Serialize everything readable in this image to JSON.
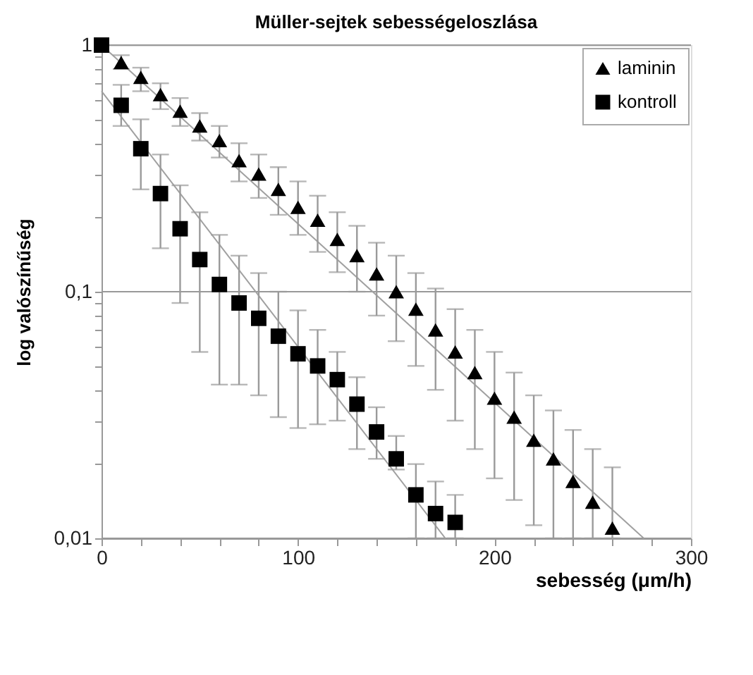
{
  "chart_data": {
    "type": "scatter",
    "title": "Müller-sejtek sebességeloszlása",
    "xlabel": "sebesség (μm/h)",
    "ylabel": "log valószínűség",
    "log": "y",
    "xlim": [
      0,
      300
    ],
    "xticks": [
      0,
      {
        "value": 20,
        "label": null
      },
      {
        "value": 40,
        "label": null
      },
      {
        "value": 60,
        "label": null
      },
      {
        "value": 80,
        "label": null
      },
      100,
      {
        "value": 120,
        "label": null
      },
      {
        "value": 140,
        "label": null
      },
      {
        "value": 160,
        "label": null
      },
      {
        "value": 180,
        "label": null
      },
      200,
      {
        "value": 220,
        "label": null
      },
      {
        "value": 240,
        "label": null
      },
      {
        "value": 260,
        "label": null
      },
      {
        "value": 280,
        "label": null
      },
      300
    ],
    "ylim": [
      0.01,
      1
    ],
    "yticks": [
      {
        "value": 0.01,
        "label": "0,01"
      },
      {
        "value": 0.02,
        "label": null
      },
      {
        "value": 0.03,
        "label": null
      },
      {
        "value": 0.04,
        "label": null
      },
      {
        "value": 0.05,
        "label": null
      },
      {
        "value": 0.06,
        "label": null
      },
      {
        "value": 0.07,
        "label": null
      },
      {
        "value": 0.08,
        "label": null
      },
      {
        "value": 0.09,
        "label": null
      },
      {
        "value": 0.1,
        "label": "0,1"
      },
      {
        "value": 0.2,
        "label": null
      },
      {
        "value": 0.3,
        "label": null
      },
      {
        "value": 0.4,
        "label": null
      },
      {
        "value": 0.5,
        "label": null
      },
      {
        "value": 0.6,
        "label": null
      },
      {
        "value": 0.7,
        "label": null
      },
      {
        "value": 0.8,
        "label": null
      },
      {
        "value": 0.9,
        "label": null
      },
      1
    ],
    "grid": "y",
    "legend": "top right",
    "series": [
      {
        "type": "line",
        "color": "#a0a0a0",
        "x": [
          0,
          276
        ],
        "values": [
          1.0,
          0.01
        ],
        "marker": "none",
        "line_style": "solid"
      },
      {
        "type": "line",
        "color": "#a0a0a0",
        "x": [
          0,
          175
        ],
        "values": [
          0.65,
          0.01
        ],
        "marker": "none",
        "line_style": "solid"
      },
      {
        "name": "laminin",
        "color": "#000000",
        "marker": "triangle",
        "x": [
          10,
          20,
          30,
          40,
          50,
          60,
          70,
          80,
          90,
          100,
          110,
          120,
          130,
          140,
          150,
          160,
          170,
          180,
          190,
          200,
          210,
          220,
          230,
          240,
          250,
          260
        ],
        "values": [
          0.85,
          0.74,
          0.63,
          0.54,
          0.47,
          0.41,
          0.34,
          0.3,
          0.26,
          0.22,
          0.195,
          0.163,
          0.14,
          0.118,
          0.1,
          0.085,
          0.07,
          0.057,
          0.047,
          0.037,
          0.031,
          0.025,
          0.021,
          0.017,
          0.014,
          0.011
        ],
        "errors": [
          [
            0.8,
            0.91
          ],
          [
            0.65,
            0.81
          ],
          [
            0.55,
            0.7
          ],
          [
            0.47,
            0.61
          ],
          [
            0.41,
            0.53
          ],
          [
            0.35,
            0.47
          ],
          [
            0.28,
            0.4
          ],
          [
            0.24,
            0.36
          ],
          [
            0.205,
            0.32
          ],
          [
            0.17,
            0.28
          ],
          [
            0.145,
            0.245
          ],
          [
            0.12,
            0.21
          ],
          [
            0.1,
            0.185
          ],
          [
            0.08,
            0.158
          ],
          [
            0.063,
            0.14
          ],
          [
            0.05,
            0.119
          ],
          [
            0.04,
            0.103
          ],
          [
            0.03,
            0.085
          ],
          [
            0.023,
            0.07
          ],
          [
            0.0175,
            0.057
          ],
          [
            0.0143,
            0.047
          ],
          [
            0.0113,
            0.038
          ],
          [
            0.01,
            0.033
          ],
          [
            0.01,
            0.0275
          ],
          [
            0.01,
            0.023
          ],
          [
            0.01,
            0.0194
          ]
        ]
      },
      {
        "name": "kontroll",
        "color": "#000000",
        "marker": "square",
        "x": [
          0,
          10,
          20,
          30,
          40,
          50,
          60,
          70,
          80,
          90,
          100,
          110,
          120,
          130,
          140,
          150,
          160,
          170,
          180
        ],
        "values": [
          1.0,
          0.57,
          0.38,
          0.25,
          0.18,
          0.135,
          0.107,
          0.09,
          0.078,
          0.066,
          0.056,
          0.05,
          0.044,
          0.035,
          0.027,
          0.021,
          0.015,
          0.0126,
          0.0116
        ],
        "errors": [
          null,
          [
            0.47,
            0.69
          ],
          [
            0.26,
            0.5
          ],
          [
            0.15,
            0.36
          ],
          [
            0.09,
            0.27
          ],
          [
            0.057,
            0.21
          ],
          [
            0.042,
            0.17
          ],
          [
            0.042,
            0.14
          ],
          [
            0.038,
            0.119
          ],
          [
            0.031,
            0.1
          ],
          [
            0.028,
            0.084
          ],
          [
            0.029,
            0.07
          ],
          [
            0.03,
            0.057
          ],
          [
            0.023,
            0.045
          ],
          [
            0.021,
            0.034
          ],
          [
            0.019,
            0.026
          ],
          [
            0.01,
            0.02
          ],
          [
            0.01,
            0.017
          ],
          [
            0.01,
            0.015
          ]
        ]
      }
    ]
  }
}
